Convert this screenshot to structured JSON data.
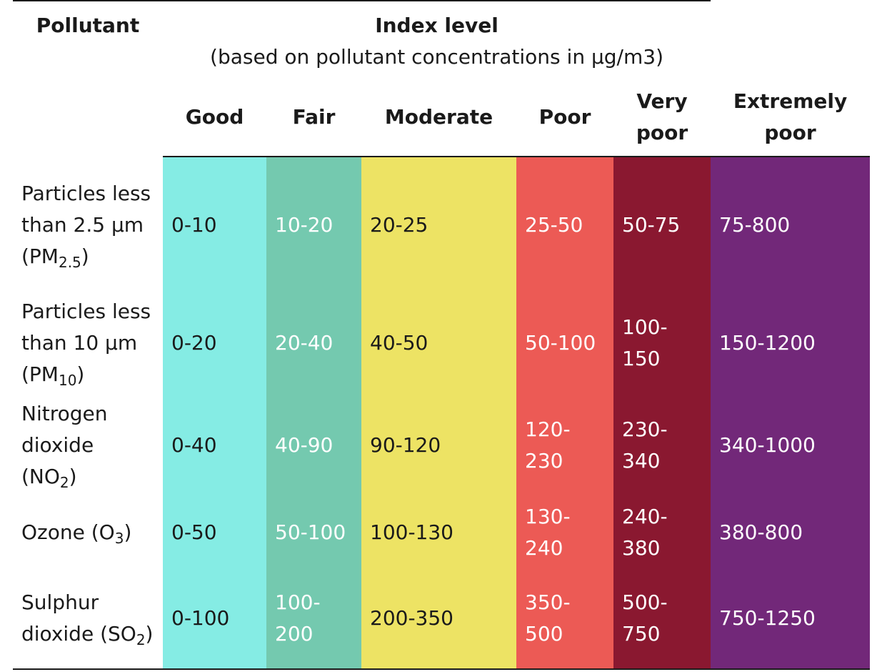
{
  "header": {
    "pollutant": "Pollutant",
    "index_level": "Index level",
    "index_sub": "(based on pollutant concentrations in µg/m3)",
    "levels": [
      "Good",
      "Fair",
      "Moderate",
      "Poor",
      "Very poor",
      "Extremely poor"
    ]
  },
  "colors": {
    "good": "#85ece4",
    "fair": "#74c9af",
    "moderate": "#ede364",
    "poor": "#ec5a55",
    "very_poor": "#8a1830",
    "extremely_poor": "#722879"
  },
  "rows": [
    {
      "name": "Particles less than 2.5 µm (PM",
      "sub": "2.5",
      "tail": ")",
      "values": [
        "0-10",
        "10-20",
        "20-25",
        "25-50",
        "50-75",
        "75-800"
      ]
    },
    {
      "name": "Particles less than 10 µm (PM",
      "sub": "10",
      "tail": ")",
      "values": [
        "0-20",
        "20-40",
        "40-50",
        "50-100",
        "100-150",
        "150-1200"
      ]
    },
    {
      "name": "Nitrogen dioxide (NO",
      "sub": "2",
      "tail": ")",
      "values": [
        "0-40",
        "40-90",
        "90-120",
        "120-230",
        "230-340",
        "340-1000"
      ]
    },
    {
      "name": "Ozone (O",
      "sub": "3",
      "tail": ")",
      "values": [
        "0-50",
        "50-100",
        "100-130",
        "130-240",
        "240-380",
        "380-800"
      ]
    },
    {
      "name": "Sulphur dioxide (SO",
      "sub": "2",
      "tail": ")",
      "values": [
        "0-100",
        "100-200",
        "200-350",
        "350-500",
        "500-750",
        "750-1250"
      ]
    }
  ]
}
